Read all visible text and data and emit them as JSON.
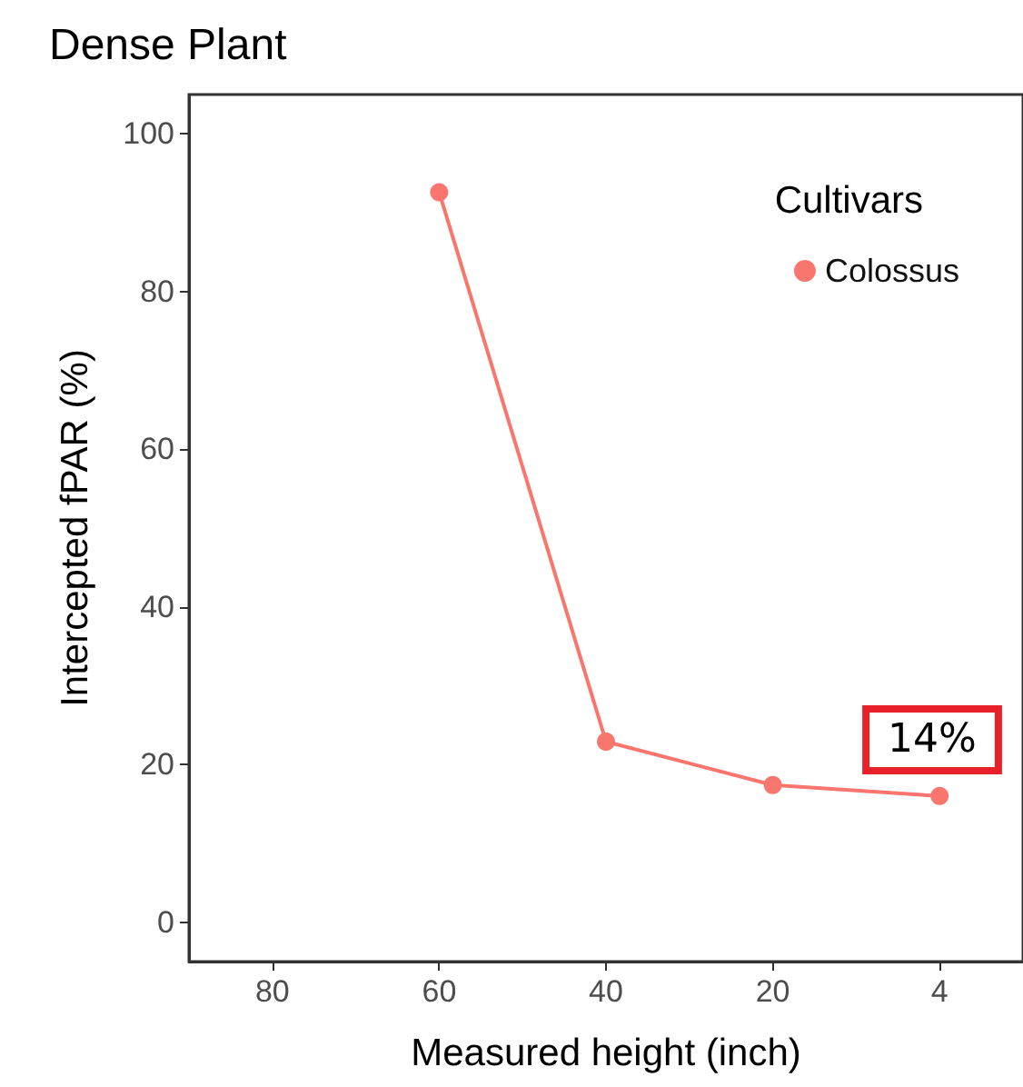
{
  "chart_data": {
    "type": "line",
    "title": "Dense Plant",
    "xlabel": "Measured height (inch)",
    "ylabel": "Intercepted fPAR (%)",
    "legend_title": "Cultivars",
    "categories": [
      "80",
      "60",
      "40",
      "20",
      "4"
    ],
    "series": [
      {
        "name": "Colossus",
        "color": "#f8766d",
        "values": [
          null,
          92.6,
          22.9,
          17.4,
          16.0
        ]
      }
    ],
    "ylim": [
      -5,
      105
    ],
    "yticks": [
      0,
      20,
      40,
      60,
      80,
      100
    ],
    "grid": false,
    "legend": "top right",
    "marker": "circle",
    "line_style": "solid",
    "annotations": [
      "14%"
    ]
  }
}
